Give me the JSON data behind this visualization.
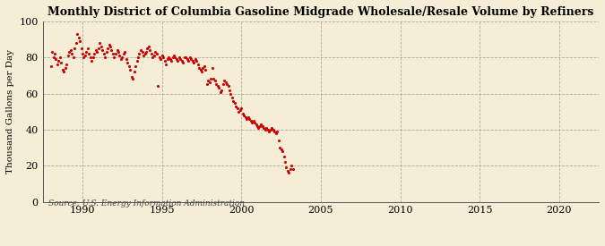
{
  "title": "Monthly District of Columbia Gasoline Midgrade Wholesale/Resale Volume by Refiners",
  "ylabel": "Thousand Gallons per Day",
  "source": "Source: U.S. Energy Information Administration",
  "bg_color": "#F5EDD6",
  "dot_color": "#CC0000",
  "dot_size": 5,
  "xlim": [
    1987.5,
    2022.5
  ],
  "ylim": [
    0,
    100
  ],
  "yticks": [
    0,
    20,
    40,
    60,
    80,
    100
  ],
  "xticks": [
    1990,
    1995,
    2000,
    2005,
    2010,
    2015,
    2020
  ],
  "data": [
    [
      1988.0,
      75.0
    ],
    [
      1988.08,
      83.0
    ],
    [
      1988.17,
      80.0
    ],
    [
      1988.25,
      82.0
    ],
    [
      1988.33,
      79.0
    ],
    [
      1988.42,
      76.0
    ],
    [
      1988.5,
      78.0
    ],
    [
      1988.58,
      80.0
    ],
    [
      1988.67,
      77.0
    ],
    [
      1988.75,
      73.0
    ],
    [
      1988.83,
      72.0
    ],
    [
      1988.92,
      74.0
    ],
    [
      1989.0,
      76.0
    ],
    [
      1989.08,
      81.0
    ],
    [
      1989.17,
      83.0
    ],
    [
      1989.25,
      84.0
    ],
    [
      1989.33,
      82.0
    ],
    [
      1989.42,
      80.0
    ],
    [
      1989.5,
      85.0
    ],
    [
      1989.58,
      88.0
    ],
    [
      1989.67,
      93.0
    ],
    [
      1989.75,
      91.0
    ],
    [
      1989.83,
      89.0
    ],
    [
      1989.92,
      85.0
    ],
    [
      1990.0,
      82.0
    ],
    [
      1990.08,
      80.0
    ],
    [
      1990.17,
      81.0
    ],
    [
      1990.25,
      83.0
    ],
    [
      1990.33,
      85.0
    ],
    [
      1990.42,
      82.0
    ],
    [
      1990.5,
      80.0
    ],
    [
      1990.58,
      78.0
    ],
    [
      1990.67,
      80.0
    ],
    [
      1990.75,
      82.0
    ],
    [
      1990.83,
      84.0
    ],
    [
      1990.92,
      83.0
    ],
    [
      1991.0,
      85.0
    ],
    [
      1991.08,
      88.0
    ],
    [
      1991.17,
      86.0
    ],
    [
      1991.25,
      84.0
    ],
    [
      1991.33,
      82.0
    ],
    [
      1991.42,
      80.0
    ],
    [
      1991.5,
      83.0
    ],
    [
      1991.58,
      85.0
    ],
    [
      1991.67,
      87.0
    ],
    [
      1991.75,
      86.0
    ],
    [
      1991.83,
      84.0
    ],
    [
      1991.92,
      82.0
    ],
    [
      1992.0,
      80.0
    ],
    [
      1992.08,
      82.0
    ],
    [
      1992.17,
      84.0
    ],
    [
      1992.25,
      83.0
    ],
    [
      1992.33,
      81.0
    ],
    [
      1992.42,
      79.0
    ],
    [
      1992.5,
      80.0
    ],
    [
      1992.58,
      82.0
    ],
    [
      1992.67,
      83.0
    ],
    [
      1992.75,
      79.0
    ],
    [
      1992.83,
      77.0
    ],
    [
      1992.92,
      75.0
    ],
    [
      1993.0,
      73.0
    ],
    [
      1993.08,
      69.0
    ],
    [
      1993.17,
      68.0
    ],
    [
      1993.25,
      72.0
    ],
    [
      1993.33,
      75.0
    ],
    [
      1993.42,
      78.0
    ],
    [
      1993.5,
      80.0
    ],
    [
      1993.58,
      82.0
    ],
    [
      1993.67,
      84.0
    ],
    [
      1993.75,
      83.0
    ],
    [
      1993.83,
      81.0
    ],
    [
      1993.92,
      82.0
    ],
    [
      1994.0,
      83.0
    ],
    [
      1994.08,
      85.0
    ],
    [
      1994.17,
      86.0
    ],
    [
      1994.25,
      84.0
    ],
    [
      1994.33,
      82.0
    ],
    [
      1994.42,
      80.0
    ],
    [
      1994.5,
      81.0
    ],
    [
      1994.58,
      83.0
    ],
    [
      1994.67,
      82.0
    ],
    [
      1994.75,
      64.0
    ],
    [
      1994.83,
      80.0
    ],
    [
      1994.92,
      79.0
    ],
    [
      1995.0,
      81.0
    ],
    [
      1995.08,
      80.0
    ],
    [
      1995.17,
      78.0
    ],
    [
      1995.25,
      76.0
    ],
    [
      1995.33,
      79.0
    ],
    [
      1995.42,
      80.0
    ],
    [
      1995.5,
      79.0
    ],
    [
      1995.58,
      78.0
    ],
    [
      1995.67,
      80.0
    ],
    [
      1995.75,
      81.0
    ],
    [
      1995.83,
      80.0
    ],
    [
      1995.92,
      79.0
    ],
    [
      1996.0,
      78.0
    ],
    [
      1996.08,
      80.0
    ],
    [
      1996.17,
      79.0
    ],
    [
      1996.25,
      78.0
    ],
    [
      1996.33,
      77.0
    ],
    [
      1996.42,
      80.0
    ],
    [
      1996.5,
      80.0
    ],
    [
      1996.58,
      79.0
    ],
    [
      1996.67,
      78.0
    ],
    [
      1996.75,
      80.0
    ],
    [
      1996.83,
      79.0
    ],
    [
      1996.92,
      78.0
    ],
    [
      1997.0,
      77.0
    ],
    [
      1997.08,
      79.0
    ],
    [
      1997.17,
      78.0
    ],
    [
      1997.25,
      76.0
    ],
    [
      1997.33,
      74.0
    ],
    [
      1997.42,
      73.0
    ],
    [
      1997.5,
      72.0
    ],
    [
      1997.58,
      74.0
    ],
    [
      1997.67,
      75.0
    ],
    [
      1997.75,
      73.0
    ],
    [
      1997.83,
      65.0
    ],
    [
      1997.92,
      67.0
    ],
    [
      1998.0,
      66.0
    ],
    [
      1998.08,
      68.0
    ],
    [
      1998.17,
      74.0
    ],
    [
      1998.25,
      68.0
    ],
    [
      1998.33,
      67.0
    ],
    [
      1998.42,
      65.0
    ],
    [
      1998.5,
      64.0
    ],
    [
      1998.58,
      63.0
    ],
    [
      1998.67,
      61.0
    ],
    [
      1998.75,
      62.0
    ],
    [
      1998.83,
      65.0
    ],
    [
      1998.92,
      67.0
    ],
    [
      1999.0,
      66.0
    ],
    [
      1999.08,
      65.0
    ],
    [
      1999.17,
      64.0
    ],
    [
      1999.25,
      62.0
    ],
    [
      1999.33,
      60.0
    ],
    [
      1999.42,
      58.0
    ],
    [
      1999.5,
      56.0
    ],
    [
      1999.58,
      55.0
    ],
    [
      1999.67,
      53.0
    ],
    [
      1999.75,
      52.0
    ],
    [
      1999.83,
      50.0
    ],
    [
      1999.92,
      51.0
    ],
    [
      2000.0,
      52.0
    ],
    [
      2000.08,
      49.0
    ],
    [
      2000.17,
      48.0
    ],
    [
      2000.25,
      47.0
    ],
    [
      2000.33,
      46.0
    ],
    [
      2000.42,
      47.0
    ],
    [
      2000.5,
      46.0
    ],
    [
      2000.58,
      45.0
    ],
    [
      2000.67,
      44.0
    ],
    [
      2000.75,
      45.0
    ],
    [
      2000.83,
      44.0
    ],
    [
      2000.92,
      43.0
    ],
    [
      2001.0,
      42.0
    ],
    [
      2001.08,
      41.0
    ],
    [
      2001.17,
      42.0
    ],
    [
      2001.25,
      43.0
    ],
    [
      2001.33,
      42.0
    ],
    [
      2001.42,
      41.0
    ],
    [
      2001.5,
      40.0
    ],
    [
      2001.58,
      41.0
    ],
    [
      2001.67,
      40.0
    ],
    [
      2001.75,
      39.0
    ],
    [
      2001.83,
      40.0
    ],
    [
      2001.92,
      41.0
    ],
    [
      2002.0,
      40.0
    ],
    [
      2002.08,
      39.0
    ],
    [
      2002.17,
      38.0
    ],
    [
      2002.25,
      39.0
    ],
    [
      2002.33,
      34.0
    ],
    [
      2002.42,
      30.0
    ],
    [
      2002.5,
      29.0
    ],
    [
      2002.58,
      28.0
    ],
    [
      2002.67,
      25.0
    ],
    [
      2002.75,
      22.0
    ],
    [
      2002.83,
      19.0
    ],
    [
      2002.92,
      17.0
    ],
    [
      2003.0,
      16.0
    ],
    [
      2003.08,
      18.0
    ],
    [
      2003.17,
      20.0
    ],
    [
      2003.25,
      18.0
    ]
  ]
}
